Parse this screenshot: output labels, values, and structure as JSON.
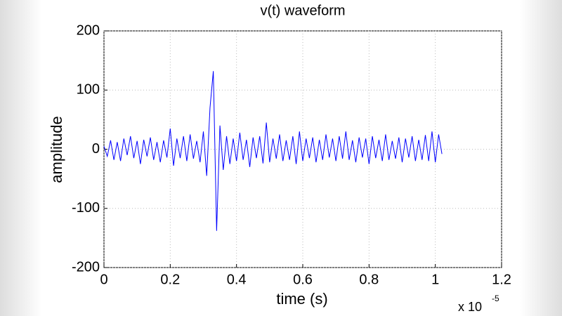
{
  "chart_data": {
    "type": "line",
    "title": "v(t) waveform",
    "x_label": "time (s)",
    "y_label": "amplitude",
    "x_multiplier": {
      "base": "x 10",
      "exponent": "-5"
    },
    "x": [
      0,
      0.01,
      0.02,
      0.03,
      0.04,
      0.05,
      0.06,
      0.07,
      0.08,
      0.09,
      0.1,
      0.11,
      0.12,
      0.13,
      0.14,
      0.15,
      0.16,
      0.17,
      0.18,
      0.19,
      0.2,
      0.21,
      0.22,
      0.23,
      0.24,
      0.25,
      0.26,
      0.27,
      0.28,
      0.29,
      0.3,
      0.31,
      0.32,
      0.33,
      0.34,
      0.35,
      0.36,
      0.37,
      0.38,
      0.39,
      0.4,
      0.41,
      0.42,
      0.43,
      0.44,
      0.45,
      0.46,
      0.47,
      0.48,
      0.49,
      0.5,
      0.51,
      0.52,
      0.53,
      0.54,
      0.55,
      0.56,
      0.57,
      0.58,
      0.59,
      0.6,
      0.61,
      0.62,
      0.63,
      0.64,
      0.65,
      0.66,
      0.67,
      0.68,
      0.69,
      0.7,
      0.71,
      0.72,
      0.73,
      0.74,
      0.75,
      0.76,
      0.77,
      0.78,
      0.79,
      0.8,
      0.81,
      0.82,
      0.83,
      0.84,
      0.85,
      0.86,
      0.87,
      0.88,
      0.89,
      0.9,
      0.91,
      0.92,
      0.93,
      0.94,
      0.95,
      0.96,
      0.97,
      0.98,
      0.99,
      1,
      1.01,
      1.02
    ],
    "series": [
      {
        "color": "#0000ff",
        "values": [
          5,
          -12,
          15,
          -18,
          12,
          -20,
          18,
          -10,
          22,
          -15,
          14,
          -25,
          16,
          -12,
          20,
          -18,
          12,
          -22,
          15,
          -14,
          35,
          -28,
          18,
          -15,
          22,
          -20,
          25,
          -16,
          14,
          -22,
          30,
          -45,
          70,
          132,
          -138,
          40,
          -35,
          22,
          -25,
          18,
          -20,
          28,
          -18,
          16,
          -30,
          20,
          -15,
          22,
          -24,
          45,
          -22,
          18,
          -16,
          25,
          -20,
          15,
          -18,
          22,
          -25,
          30,
          -20,
          18,
          -15,
          20,
          -22,
          16,
          -18,
          25,
          -14,
          18,
          -20,
          22,
          -16,
          30,
          -18,
          15,
          -22,
          20,
          -14,
          18,
          -25,
          22,
          -15,
          16,
          -20,
          25,
          -18,
          14,
          -16,
          20,
          -22,
          18,
          -14,
          22,
          -20,
          16,
          -18,
          24,
          -20,
          30,
          -22,
          25,
          -8
        ]
      }
    ],
    "xlim": [
      0,
      1.2
    ],
    "xticks": [
      0,
      0.2,
      0.4,
      0.6,
      0.8,
      1,
      1.2
    ],
    "ylim": [
      -200,
      200
    ],
    "yticks": [
      -200,
      -100,
      0,
      100,
      200
    ],
    "grid": true
  }
}
